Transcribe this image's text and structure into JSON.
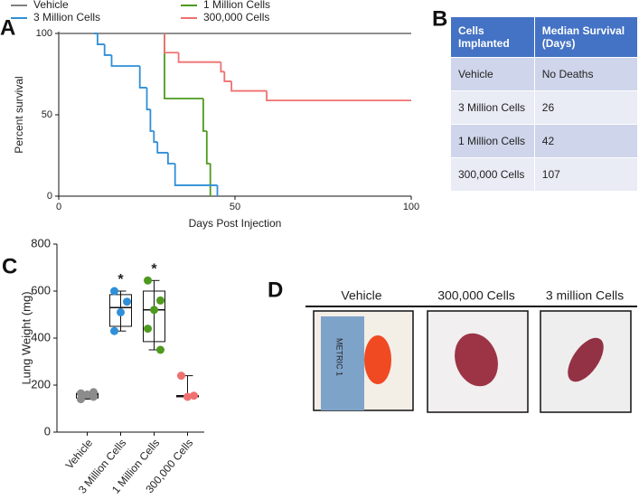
{
  "panels": [
    "A",
    "B",
    "C",
    "D"
  ],
  "chart_data": [
    {
      "type": "step",
      "xlabel": "Days Post Injection",
      "ylabel": "Percent survival",
      "xlim": [
        0,
        100
      ],
      "ylim": [
        0,
        100
      ],
      "xticks": [
        0,
        50,
        100
      ],
      "yticks": [
        0,
        50,
        100
      ],
      "series": [
        {
          "name": "Vehicle",
          "color": "#808080",
          "x": [
            0,
            100
          ],
          "y": [
            100,
            100
          ]
        },
        {
          "name": "1 Million Cells",
          "color": "#4e9a1e",
          "x": [
            30,
            30,
            41,
            42,
            43
          ],
          "y": [
            100,
            60,
            40,
            20,
            0
          ]
        },
        {
          "name": "3 Million Cells",
          "color": "#2f8fd8",
          "x": [
            10,
            11,
            13,
            15,
            23,
            25,
            26,
            27,
            28,
            31,
            33,
            45
          ],
          "y": [
            100,
            93.3,
            86.7,
            80,
            66.7,
            53.3,
            40,
            33.3,
            26.7,
            20,
            6.7,
            0
          ]
        },
        {
          "name": "300,000 Cells",
          "color": "#f07070",
          "x": [
            30,
            30,
            34,
            46,
            47,
            49,
            59,
            100
          ],
          "y": [
            100,
            88.2,
            82.4,
            76.5,
            70.6,
            64.7,
            58.8,
            58.8
          ]
        }
      ]
    },
    {
      "type": "box",
      "ylabel": "Lung Weight (mg)",
      "ylim": [
        0,
        800
      ],
      "yticks": [
        0,
        200,
        400,
        600,
        800
      ],
      "categories": [
        "Vehicle",
        "3 Million Cells",
        "1 Million Cells",
        "300,000 Cells"
      ],
      "series": [
        {
          "color": "#8c8c8c",
          "points": [
            140,
            150,
            160,
            165,
            170
          ],
          "box": {
            "min": 140,
            "q1": 145,
            "median": 160,
            "q3": 165,
            "max": 170
          }
        },
        {
          "color": "#2f8fd8",
          "points": [
            600,
            555,
            510,
            430
          ],
          "box": {
            "min": 430,
            "q1": 450,
            "median": 530,
            "q3": 585,
            "max": 600
          },
          "annotation": "*"
        },
        {
          "color": "#4e9a1e",
          "points": [
            645,
            560,
            520,
            440,
            350
          ],
          "box": {
            "min": 350,
            "q1": 385,
            "median": 520,
            "q3": 600,
            "max": 645
          },
          "annotation": "*"
        },
        {
          "color": "#f07070",
          "points": [
            240,
            155,
            150
          ],
          "box": {
            "min": 150,
            "q1": 150,
            "median": 155,
            "q3": 155,
            "max": 240
          }
        }
      ]
    }
  ],
  "table": {
    "header": [
      "Cells Implanted",
      "Median Survival (Days)"
    ],
    "rows": [
      [
        "Vehicle",
        "No Deaths"
      ],
      [
        "3 Million Cells",
        "26"
      ],
      [
        "1 Million Cells",
        "42"
      ],
      [
        "300,000 Cells",
        "107"
      ]
    ]
  },
  "photos": {
    "labels": [
      "Vehicle",
      "300,000 Cells",
      "3 million Cells"
    ],
    "ruler": "METRIC 1"
  }
}
